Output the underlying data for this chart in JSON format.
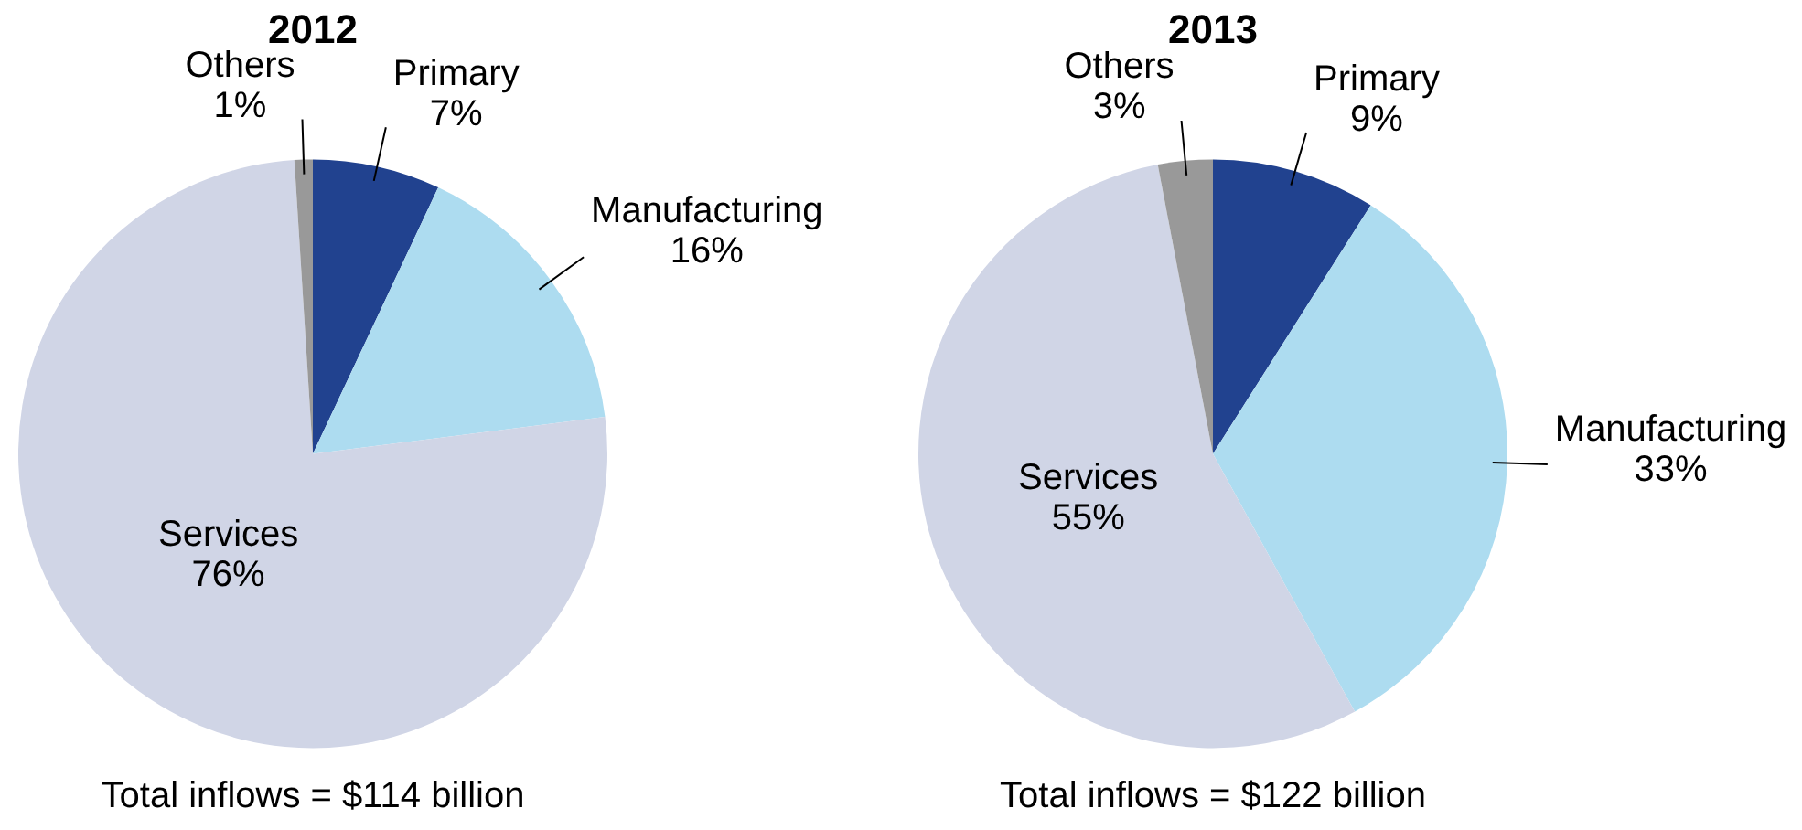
{
  "chart_data": [
    {
      "type": "pie",
      "title": "2012",
      "categories": [
        "Primary",
        "Manufacturing",
        "Services",
        "Others"
      ],
      "values": [
        7,
        16,
        76,
        1
      ],
      "value_labels": [
        "7%",
        "16%",
        "76%",
        "1%"
      ],
      "colors": [
        "#21428f",
        "#addcf0",
        "#d0d5e6",
        "#999999"
      ],
      "annotations": [
        "Total inflows = $114 billion"
      ],
      "legend": false
    },
    {
      "type": "pie",
      "title": "2013",
      "categories": [
        "Primary",
        "Manufacturing",
        "Services",
        "Others"
      ],
      "values": [
        9,
        33,
        55,
        3
      ],
      "value_labels": [
        "9%",
        "33%",
        "55%",
        "3%"
      ],
      "colors": [
        "#21428f",
        "#addcf0",
        "#d0d5e6",
        "#999999"
      ],
      "annotations": [
        "Total inflows = $122 billion"
      ],
      "legend": false
    }
  ]
}
